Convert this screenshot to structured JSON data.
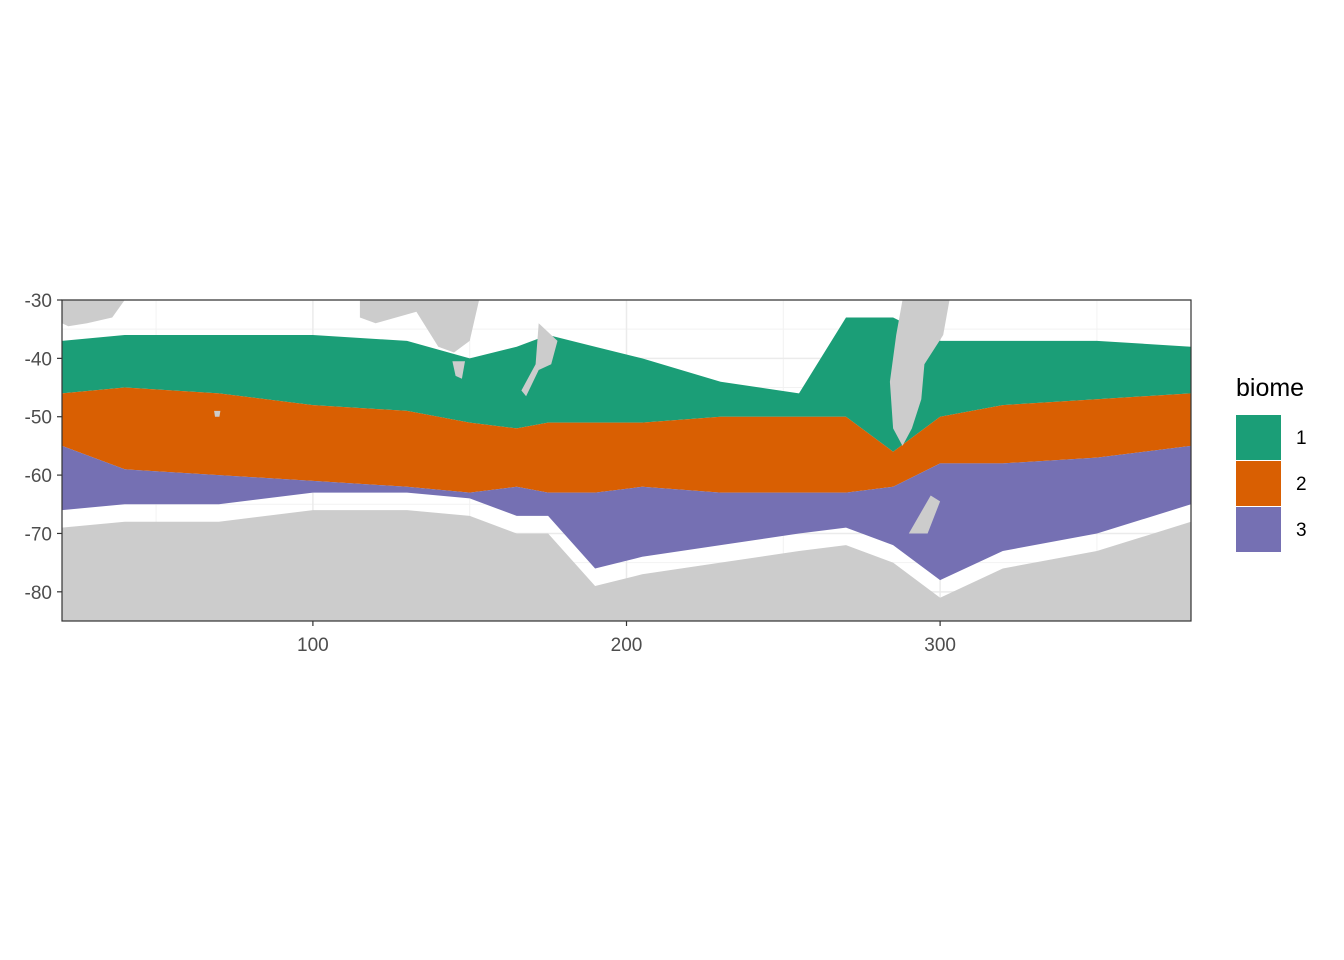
{
  "chart_data": {
    "type": "heatmap",
    "xlabel": "",
    "ylabel": "",
    "xlim": [
      20,
      380
    ],
    "ylim": [
      -85,
      -30
    ],
    "x_ticks": [
      100,
      200,
      300
    ],
    "y_ticks": [
      -30,
      -40,
      -50,
      -60,
      -70,
      -80
    ],
    "grid": true,
    "legend": {
      "title": "biome",
      "placement": "right",
      "entries": [
        {
          "label": "1",
          "color": "#1b9e77"
        },
        {
          "label": "2",
          "color": "#d95f02"
        },
        {
          "label": "3",
          "color": "#7570b3"
        }
      ]
    },
    "land_color": "#cccccc",
    "no_data_color": "#ffffff",
    "biome_boundaries_by_longitude": {
      "x": [
        20,
        40,
        70,
        100,
        130,
        150,
        165,
        175,
        190,
        205,
        230,
        255,
        270,
        285,
        300,
        320,
        350,
        380
      ],
      "biome1_north_lat": [
        -37,
        -36,
        -36,
        -36,
        -37,
        -40,
        -38,
        -36,
        -38,
        -40,
        -44,
        -46,
        -33,
        -33,
        -37,
        -37,
        -37,
        -38
      ],
      "biome1_biome2_lat": [
        -46,
        -45,
        -46,
        -48,
        -49,
        -51,
        -52,
        -51,
        -51,
        -51,
        -50,
        -50,
        -50,
        -56,
        -50,
        -48,
        -47,
        -46
      ],
      "biome2_biome3_lat": [
        -55,
        -59,
        -60,
        -61,
        -62,
        -63,
        -62,
        -63,
        -63,
        -62,
        -63,
        -63,
        -63,
        -62,
        -58,
        -58,
        -57,
        -55
      ],
      "biome3_south_lat": [
        -66,
        -65,
        -65,
        -63,
        -63,
        -64,
        -67,
        -67,
        -76,
        -74,
        -72,
        -70,
        -69,
        -72,
        -78,
        -73,
        -70,
        -65
      ]
    }
  }
}
